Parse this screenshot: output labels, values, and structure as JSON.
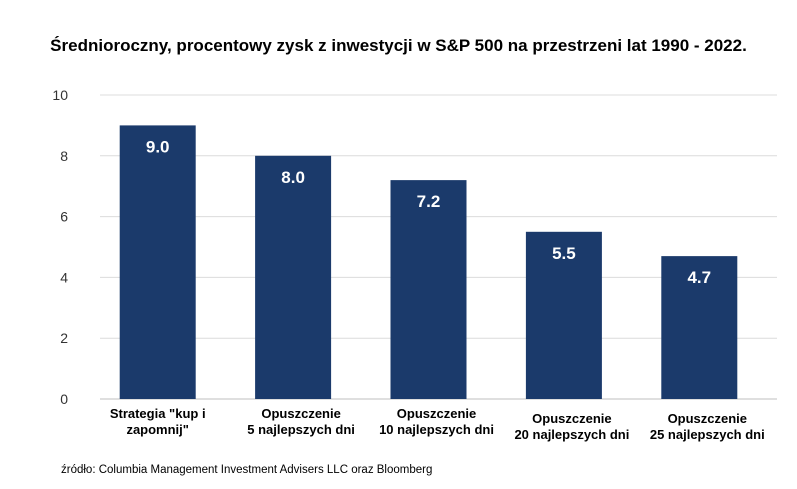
{
  "chart_data": {
    "type": "bar",
    "title": "Średnioroczny, procentowy zysk z inwestycji w S&P 500 na przestrzeni lat 1990 - 2022.",
    "categories": [
      [
        "Strategia \"kup i",
        "zapomnij\""
      ],
      [
        "Opuszczenie",
        "5 najlepszych dni"
      ],
      [
        "Opuszczenie",
        "10 najlepszych dni"
      ],
      [
        "Opuszczenie",
        "20 najlepszych dni"
      ],
      [
        "Opuszczenie",
        "25 najlepszych dni"
      ]
    ],
    "values": [
      9.0,
      8.0,
      7.2,
      5.5,
      4.7
    ],
    "data_labels": [
      "9.0",
      "8.0",
      "7.2",
      "5.5",
      "4.7"
    ],
    "yticks": [
      0,
      2,
      4,
      6,
      8,
      10
    ],
    "ylim": [
      0,
      10
    ],
    "grid": true,
    "bar_color": "#1b3a6b",
    "source": "źródło: Columbia Management Investment Advisers LLC oraz Bloomberg"
  }
}
